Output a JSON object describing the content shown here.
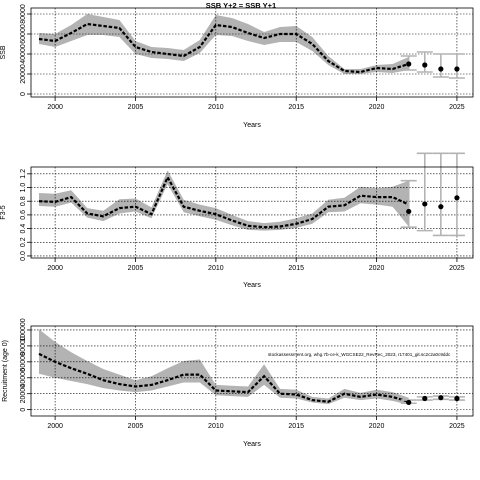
{
  "title": "SSB Y+2 = SSB Y+1",
  "note": "stockassessment.org, whg.7b-ce-k_WGCSE22_RevRec_2023, r17401_git.sc2c2a0c9ddc",
  "colors": {
    "band": "#b3b3b3",
    "line": "#000000",
    "grid": "#000000",
    "whisker": "#b3b3b3",
    "point": "#000000"
  },
  "chart_data": [
    {
      "type": "line",
      "title": "SSB Y+2 = SSB Y+1",
      "xlabel": "Years",
      "ylabel": "SSB",
      "xlim": [
        1998.5,
        2026
      ],
      "ylim": [
        -3000,
        86000
      ],
      "xticks": [
        2000,
        2005,
        2010,
        2015,
        2020,
        2025
      ],
      "yticks": [
        0,
        20000,
        40000,
        60000,
        80000
      ],
      "ytick_labels": [
        "0",
        "20000",
        "40000",
        "60000",
        "80000"
      ],
      "grid": true,
      "series": [
        {
          "x": [
            1999,
            2000,
            2001,
            2002,
            2003,
            2004,
            2005,
            2006,
            2007,
            2008,
            2009,
            2010,
            2011,
            2012,
            2013,
            2014,
            2015,
            2016,
            2017,
            2018,
            2019,
            2020,
            2021,
            2022
          ],
          "values": [
            55000,
            53000,
            61000,
            70000,
            68000,
            66000,
            47000,
            42000,
            40000,
            38000,
            47000,
            69000,
            67000,
            61000,
            56000,
            60000,
            60000,
            50000,
            33000,
            23000,
            22000,
            26000,
            25000,
            30000
          ],
          "low": [
            50000,
            47000,
            53000,
            59000,
            59000,
            57000,
            40000,
            36000,
            35000,
            33000,
            41000,
            59000,
            58000,
            53000,
            49000,
            52000,
            52000,
            43000,
            29000,
            20000,
            20000,
            22000,
            21000,
            24000
          ],
          "high": [
            61000,
            60000,
            69000,
            80000,
            77000,
            74000,
            53000,
            47000,
            46000,
            44000,
            54000,
            79000,
            76000,
            70000,
            62000,
            67000,
            68000,
            57000,
            38000,
            25000,
            25000,
            29000,
            30000,
            37000
          ]
        }
      ],
      "forecast": {
        "x": [
          2022,
          2023,
          2024,
          2025
        ],
        "values": [
          30000,
          29000,
          25000,
          25000
        ],
        "low": [
          24000,
          22000,
          17000,
          16000
        ],
        "high": [
          38000,
          42000,
          40000,
          40000
        ]
      }
    },
    {
      "type": "line",
      "xlabel": "Years",
      "ylabel": "F3-5",
      "xlim": [
        1998.5,
        2026
      ],
      "ylim": [
        -0.03,
        1.3
      ],
      "xticks": [
        2000,
        2005,
        2010,
        2015,
        2020,
        2025
      ],
      "yticks": [
        0,
        0.2,
        0.4,
        0.6,
        0.8,
        1.0,
        1.2
      ],
      "ytick_labels": [
        "0.0",
        "0.2",
        "0.4",
        "0.6",
        "0.8",
        "1.0",
        "1.2"
      ],
      "grid": true,
      "series": [
        {
          "x": [
            1999,
            2000,
            2001,
            2002,
            2003,
            2004,
            2005,
            2006,
            2007,
            2008,
            2009,
            2010,
            2011,
            2012,
            2013,
            2014,
            2015,
            2016,
            2017,
            2018,
            2019,
            2020,
            2021,
            2022
          ],
          "values": [
            0.8,
            0.79,
            0.86,
            0.62,
            0.58,
            0.7,
            0.72,
            0.61,
            1.15,
            0.72,
            0.66,
            0.61,
            0.52,
            0.44,
            0.42,
            0.43,
            0.47,
            0.54,
            0.72,
            0.74,
            0.88,
            0.86,
            0.86,
            0.75
          ],
          "low": [
            0.73,
            0.72,
            0.78,
            0.56,
            0.51,
            0.62,
            0.65,
            0.55,
            1.05,
            0.64,
            0.58,
            0.53,
            0.45,
            0.38,
            0.37,
            0.38,
            0.41,
            0.47,
            0.64,
            0.65,
            0.77,
            0.75,
            0.72,
            0.43
          ],
          "high": [
            0.92,
            0.91,
            0.96,
            0.7,
            0.66,
            0.83,
            0.84,
            0.71,
            1.25,
            0.82,
            0.75,
            0.7,
            0.6,
            0.51,
            0.48,
            0.5,
            0.55,
            0.62,
            0.82,
            0.85,
            1.01,
            0.99,
            1.01,
            1.1
          ]
        }
      ],
      "forecast": {
        "x": [
          2022,
          2023,
          2024,
          2025
        ],
        "values": [
          0.65,
          0.76,
          0.72,
          0.85
        ],
        "low": [
          0.42,
          0.37,
          0.3,
          0.3
        ],
        "high": [
          1.1,
          1.5,
          1.5,
          1.5
        ]
      }
    },
    {
      "type": "line",
      "xlabel": "Years",
      "ylabel": "Recruitment (age 0)",
      "xlim": [
        1998.5,
        2026
      ],
      "ylim": [
        -8000,
        105000
      ],
      "xticks": [
        2000,
        2005,
        2010,
        2015,
        2020,
        2025
      ],
      "yticks": [
        0,
        20000,
        40000,
        60000,
        80000,
        100000
      ],
      "ytick_labels": [
        "0",
        "20000",
        "40000",
        "60000",
        "80000",
        "100000"
      ],
      "grid": true,
      "series": [
        {
          "x": [
            1999,
            2000,
            2001,
            2002,
            2003,
            2004,
            2005,
            2006,
            2007,
            2008,
            2009,
            2010,
            2011,
            2012,
            2013,
            2014,
            2015,
            2016,
            2017,
            2018,
            2019,
            2020,
            2021,
            2022
          ],
          "values": [
            70000,
            60000,
            52000,
            45000,
            37000,
            32000,
            29000,
            31000,
            37000,
            44000,
            44000,
            24000,
            23000,
            22000,
            42000,
            20000,
            19000,
            12000,
            10000,
            20000,
            16000,
            19000,
            16000,
            10000
          ],
          "low": [
            45000,
            40000,
            36000,
            32000,
            27000,
            24000,
            22000,
            24000,
            29000,
            34000,
            34000,
            18000,
            17000,
            16000,
            31000,
            15000,
            14000,
            9000,
            7000,
            15000,
            12000,
            14000,
            11000,
            6000
          ],
          "high": [
            101000,
            85000,
            72000,
            61000,
            51000,
            44000,
            37000,
            42000,
            52000,
            61000,
            63000,
            31000,
            30000,
            29000,
            57000,
            26000,
            25000,
            16000,
            14000,
            26000,
            21000,
            25000,
            22000,
            15000
          ]
        }
      ],
      "forecast": {
        "x": [
          2022,
          2023,
          2024,
          2025
        ],
        "values": [
          9000,
          14000,
          15000,
          14000
        ],
        "low": [
          8000,
          12000,
          13000,
          12000
        ],
        "high": [
          12000,
          16000,
          17000,
          16000
        ]
      }
    }
  ]
}
